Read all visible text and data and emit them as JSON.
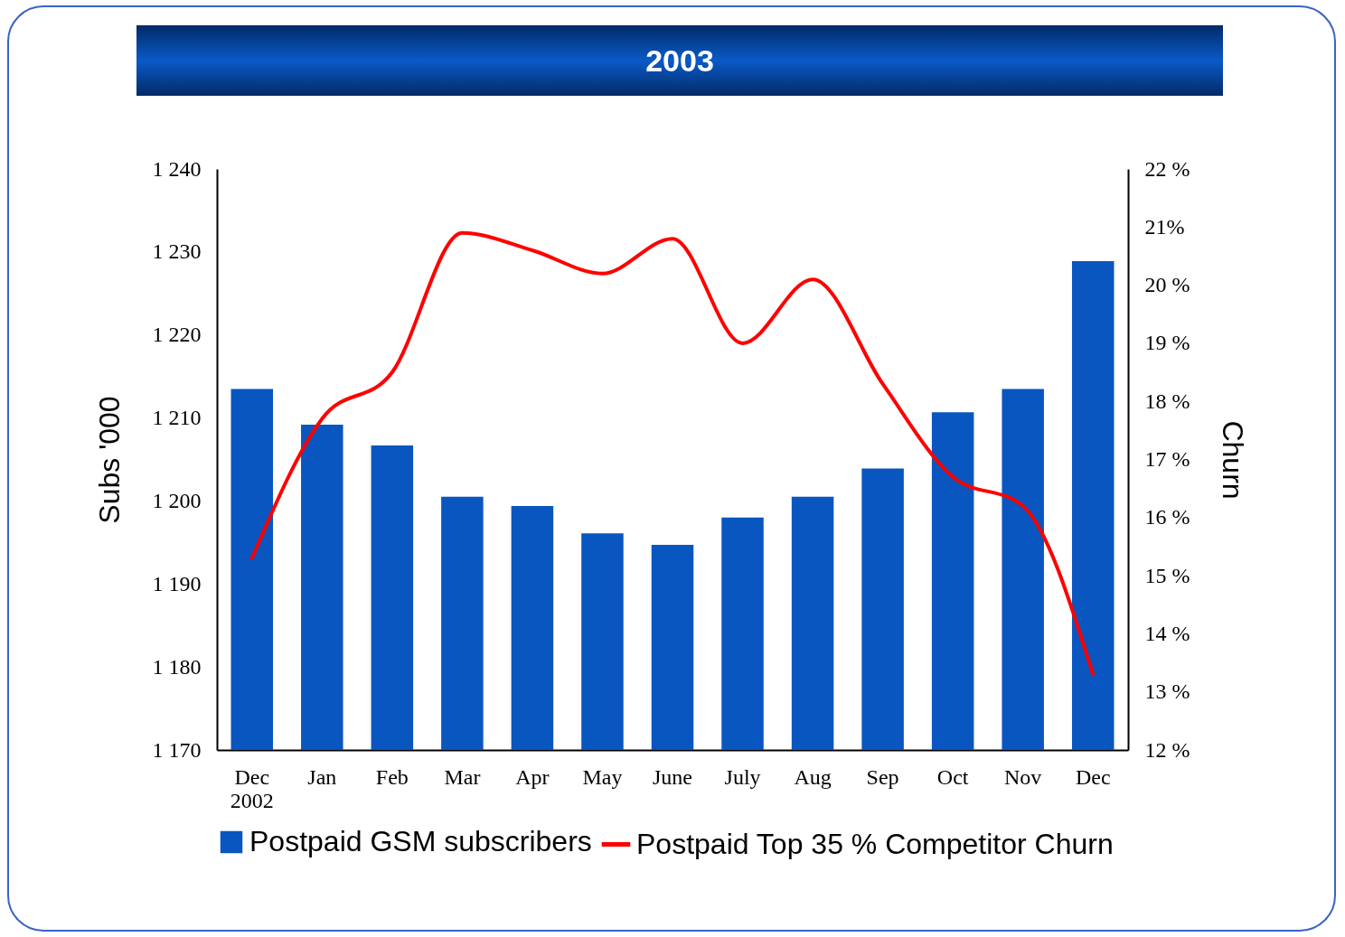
{
  "chart_data": {
    "type": "bar",
    "title": "2003",
    "categories": [
      "Dec\n2002",
      "Jan",
      "Feb",
      "Mar",
      "Apr",
      "May",
      "June",
      "July",
      "Aug",
      "Sep",
      "Oct",
      "Nov",
      "Dec"
    ],
    "series": [
      {
        "name": "Postpaid GSM subscribers",
        "color": "#0a56c0",
        "values": [
          1213.5,
          1209.2,
          1206.7,
          1200.5,
          1199.4,
          1196.1,
          1194.7,
          1198,
          1200.5,
          1203.9,
          1210.7,
          1213.5,
          1228.9
        ]
      },
      {
        "name": "Postpaid Top 35 % Competitor Churn",
        "type": "line",
        "axis": "y2",
        "color": "#ff0000",
        "values": [
          15.3,
          17.7,
          18.5,
          20.9,
          20.6,
          20.2,
          20.8,
          19.0,
          20.1,
          18.3,
          16.7,
          16.2,
          13.3
        ]
      }
    ],
    "ylabel": "Subs '000",
    "y2label": "Churn",
    "ylim": [
      1170,
      1240
    ],
    "yticks": [
      {
        "value": 1170,
        "label": "1 170"
      },
      {
        "value": 1180,
        "label": "1 180"
      },
      {
        "value": 1190,
        "label": "1 190"
      },
      {
        "value": 1200,
        "label": "1 200"
      },
      {
        "value": 1210,
        "label": "1 210"
      },
      {
        "value": 1220,
        "label": "1 220"
      },
      {
        "value": 1230,
        "label": "1 230"
      },
      {
        "value": 1240,
        "label": "1 240"
      }
    ],
    "y2lim": [
      12,
      22
    ],
    "y2ticks": [
      {
        "value": 12,
        "label": "12 %"
      },
      {
        "value": 13,
        "label": "13 %"
      },
      {
        "value": 14,
        "label": "14 %"
      },
      {
        "value": 15,
        "label": "15 %"
      },
      {
        "value": 16,
        "label": "16 %"
      },
      {
        "value": 17,
        "label": "17 %"
      },
      {
        "value": 18,
        "label": "18 %"
      },
      {
        "value": 19,
        "label": "19 %"
      },
      {
        "value": 20,
        "label": "20 %"
      },
      {
        "value": 21,
        "label": "21%"
      },
      {
        "value": 22,
        "label": "22 %"
      }
    ],
    "legend": "bottom",
    "grid": false
  }
}
